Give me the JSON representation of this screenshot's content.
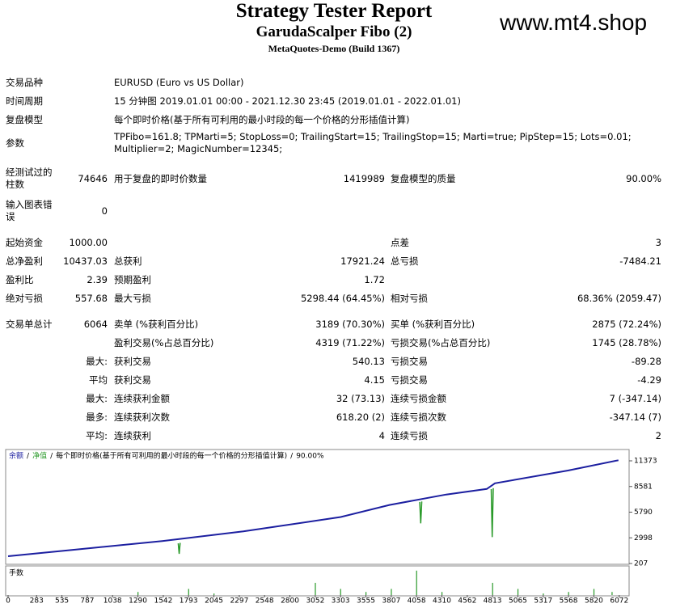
{
  "header": {
    "title": "Strategy Tester Report",
    "subtitle": "GarudaScalper Fibo (2)",
    "server": "MetaQuotes-Demo (Build 1367)"
  },
  "watermark": "www.mt4.shop",
  "rows": [
    {
      "label": "交易品种",
      "text": "EURUSD (Euro vs US Dollar)"
    },
    {
      "label": "时间周期",
      "text": "15 分钟图 2019.01.01 00:00 - 2021.12.30 23:45 (2019.01.01 - 2022.01.01)"
    },
    {
      "label": "复盘模型",
      "text": "每个即时价格(基于所有可利用的最小时段的每一个价格的分形插值计算)"
    },
    {
      "label": "参数",
      "text": "TPFibo=161.8; TPMarti=5; StopLoss=0; TrailingStart=15; TrailingStop=15; Marti=true; PipStep=15; Lots=0.01; Multiplier=2; MagicNumber=12345;"
    },
    {
      "label": "经测试过的柱数",
      "value": "74646",
      "label2": "用于复盘的即时价数量",
      "value2": "1419989",
      "label3": "复盘模型的质量",
      "value3": "90.00%"
    },
    {
      "label": "输入图表错误",
      "value": "0"
    },
    {
      "label": "起始资金",
      "value": "1000.00",
      "label3": "点差",
      "value3": "3"
    },
    {
      "label": "总净盈利",
      "value": "10437.03",
      "label2": "总获利",
      "value2": "17921.24",
      "label3": "总亏损",
      "value3": "-7484.21"
    },
    {
      "label": "盈利比",
      "value": "2.39",
      "label2": "预期盈利",
      "value2": "1.72"
    },
    {
      "label": "绝对亏损",
      "value": "557.68",
      "label2": "最大亏损",
      "value2": "5298.44 (64.45%)",
      "label3": "相对亏损",
      "value3": "68.36% (2059.47)"
    },
    {
      "label": "交易单总计",
      "value": "6064",
      "label2": "卖单 (%获利百分比)",
      "value2": "3189 (70.30%)",
      "label3": "买单 (%获利百分比)",
      "value3": "2875 (72.24%)"
    },
    {
      "label2": "盈利交易(%占总百分比)",
      "value2": "4319 (71.22%)",
      "label3": "亏损交易(%占总百分比)",
      "value3": "1745 (28.78%)"
    },
    {
      "value": "最大:",
      "label2": "获利交易",
      "value2": "540.13",
      "label3": "亏损交易",
      "value3": "-89.28"
    },
    {
      "value": "平均",
      "label2": "获利交易",
      "value2": "4.15",
      "label3": "亏损交易",
      "value3": "-4.29"
    },
    {
      "value": "最大:",
      "label2": "连续获利金额",
      "value2": "32 (73.13)",
      "label3": "连续亏损金额",
      "value3": "7 (-347.14)"
    },
    {
      "value": "最多:",
      "label2": "连续获利次数",
      "value2": "618.20 (2)",
      "label3": "连续亏损次数",
      "value3": "-347.14 (7)"
    },
    {
      "value": "平均:",
      "label2": "连续获利",
      "value2": "4",
      "label3": "连续亏损",
      "value3": "2"
    }
  ],
  "chart_data": {
    "type": "line",
    "legend_separator": "/",
    "model": "每个即时价格(基于所有可利用的最小时段的每一个价格的分形插值计算)",
    "quality": "90.00%",
    "lots_label": "手数",
    "series": [
      {
        "name": "余额",
        "color": "#1c1fa0",
        "x": [
          0,
          726,
          1532,
          2338,
          3305,
          3789,
          4353,
          4756,
          4837,
          5563,
          6064
        ],
        "values": [
          1000,
          1777,
          2649,
          3695,
          5265,
          6573,
          7706,
          8317,
          8927,
          10322,
          11437
        ]
      },
      {
        "name": "净值",
        "color": "#2a9a2a",
        "x": [
          1690,
          1700,
          1710,
          1710,
          4090,
          4100,
          4110,
          4110,
          4800,
          4810,
          4820
        ],
        "values": [
          2400,
          1253,
          2450,
          null,
          6900,
          4567,
          6950,
          null,
          8300,
          3085,
          8400
        ]
      }
    ],
    "lots": {
      "color": "#2a9a2a",
      "x": [
        1290,
        1793,
        2045,
        3052,
        3303,
        3555,
        3807,
        4058,
        4310,
        4813,
        5065,
        5317,
        5568,
        5820,
        6000
      ],
      "values": [
        0.08,
        0.16,
        0.04,
        0.32,
        0.16,
        0.08,
        0.16,
        0.64,
        0.08,
        0.32,
        0.16,
        0.04,
        0.08,
        0.16,
        0.08
      ]
    },
    "lots_ylim": [
      0,
      0.7
    ],
    "xlim": [
      0,
      6170
    ],
    "xticks": [
      0,
      283,
      535,
      787,
      1038,
      1290,
      1542,
      1793,
      2045,
      2297,
      2548,
      2800,
      3052,
      3303,
      3555,
      3807,
      4058,
      4310,
      4562,
      4813,
      5065,
      5317,
      5568,
      5820,
      6072
    ],
    "ylim": [
      207,
      12428
    ],
    "yticks": [
      207,
      2998,
      5790,
      8581,
      11373
    ]
  }
}
